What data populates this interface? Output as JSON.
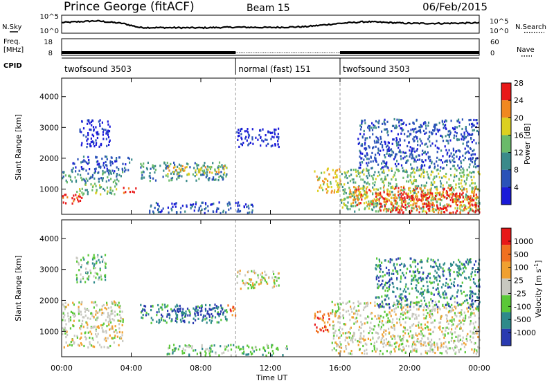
{
  "header": {
    "station": "Prince George (fitACF)",
    "beam": "Beam 15",
    "date": "06/Feb/2015"
  },
  "left_labels": {
    "nsky": "N.Sky",
    "freq_line1": "Freq.",
    "freq_line2": "[MHz]",
    "cpid": "CPID"
  },
  "right_labels": {
    "nsearch": "N.Search",
    "nave": "Nave"
  },
  "noise_axis": {
    "top": "10^5",
    "bottom": "10^0"
  },
  "freq_axis": {
    "left_ticks": [
      "18",
      "8"
    ],
    "right_ticks": [
      "60",
      "0"
    ]
  },
  "cpid_segments": [
    {
      "label": "twofsound 3503",
      "start_hour": 0,
      "end_hour": 10
    },
    {
      "label": "normal (fast) 151",
      "start_hour": 10,
      "end_hour": 16
    },
    {
      "label": "twofsound 3503",
      "start_hour": 16,
      "end_hour": 24
    }
  ],
  "x_axis": {
    "label": "Time UT",
    "ticks": [
      "00:00",
      "04:00",
      "08:00",
      "12:00",
      "16:00",
      "20:00",
      "00:00"
    ],
    "range_hours": [
      0,
      24
    ]
  },
  "power_panel": {
    "ylabel": "Slant Range [km]",
    "yticks": [
      "1000",
      "2000",
      "3000",
      "4000"
    ],
    "colorbar_label": "Power [dB]",
    "colorbar_ticks": [
      "4",
      "8",
      "12",
      "16",
      "20",
      "24",
      "28"
    ],
    "colors": [
      "#1a1ad8",
      "#2a52b8",
      "#3a8a8a",
      "#6aba6a",
      "#dcd020",
      "#f08820",
      "#e81818"
    ]
  },
  "velocity_panel": {
    "ylabel": "Slant Range [km]",
    "yticks": [
      "1000",
      "2000",
      "3000",
      "4000"
    ],
    "colorbar_label": "Velocity [m s",
    "colorbar_label_sup": "-1",
    "colorbar_label_end": "]",
    "colorbar_ticks": [
      "1000",
      "500",
      "100",
      "25",
      "-25",
      "-100",
      "-500",
      "-1000"
    ],
    "colors": [
      "#2a3ab0",
      "#2e8a8a",
      "#5ac838",
      "#c8c8c0",
      "#f0a030",
      "#f07020",
      "#e81818"
    ]
  },
  "chart_data": {
    "type": "heatmap",
    "title": "Prince George (fitACF)",
    "subtitle": "Beam 15",
    "xlabel": "Time UT",
    "ylabel": "Slant Range [km]",
    "xlim_hours": [
      0,
      24
    ],
    "ylim_km": [
      180,
      4600
    ],
    "power_db_range": [
      0,
      30
    ],
    "velocity_range": [
      -1000,
      1000
    ],
    "freq_mhz": [
      {
        "start_hour": 0,
        "end_hour": 10,
        "value": 10.5
      },
      {
        "start_hour": 10,
        "end_hour": 16,
        "value": 8.8
      },
      {
        "start_hour": 16,
        "end_hour": 24,
        "value": 10.5
      }
    ],
    "noise_profile": [
      {
        "hour": 0,
        "value": 0.6
      },
      {
        "hour": 2,
        "value": 0.7
      },
      {
        "hour": 3.5,
        "value": 0.55
      },
      {
        "hour": 4.5,
        "value": 0.3
      },
      {
        "hour": 8,
        "value": 0.28
      },
      {
        "hour": 10,
        "value": 0.32
      },
      {
        "hour": 12,
        "value": 0.3
      },
      {
        "hour": 14,
        "value": 0.35
      },
      {
        "hour": 16,
        "value": 0.55
      },
      {
        "hour": 17.5,
        "value": 0.65
      },
      {
        "hour": 20,
        "value": 0.55
      },
      {
        "hour": 22,
        "value": 0.55
      },
      {
        "hour": 24,
        "value": 0.58
      }
    ],
    "power_regions": [
      {
        "t0": 0,
        "t1": 1.3,
        "r0": 550,
        "r1": 850,
        "level": 6
      },
      {
        "t0": 0.8,
        "t1": 3.2,
        "r0": 850,
        "r1": 1200,
        "level": 3
      },
      {
        "t0": 0,
        "t1": 3.5,
        "r0": 1200,
        "r1": 1600,
        "level": 2
      },
      {
        "t0": 0.5,
        "t1": 4,
        "r0": 1600,
        "r1": 2100,
        "level": 1
      },
      {
        "t0": 1,
        "t1": 2.8,
        "r0": 2400,
        "r1": 3300,
        "level": 0
      },
      {
        "t0": 3.5,
        "t1": 4.3,
        "r0": 900,
        "r1": 1100,
        "level": 6
      },
      {
        "t0": 4.5,
        "t1": 9.5,
        "r0": 1300,
        "r1": 1900,
        "level": 2
      },
      {
        "t0": 6,
        "t1": 9.5,
        "r0": 1500,
        "r1": 1800,
        "level": 4
      },
      {
        "t0": 5,
        "t1": 11,
        "r0": 250,
        "r1": 600,
        "level": 1
      },
      {
        "t0": 10,
        "t1": 12.5,
        "r0": 2400,
        "r1": 3000,
        "level": 0
      },
      {
        "t0": 14.5,
        "t1": 16,
        "r0": 900,
        "r1": 1700,
        "level": 4
      },
      {
        "t0": 16,
        "t1": 24,
        "r0": 300,
        "r1": 1700,
        "level": 3
      },
      {
        "t0": 16.5,
        "t1": 24,
        "r0": 500,
        "r1": 1100,
        "level": 5
      },
      {
        "t0": 18,
        "t1": 24,
        "r0": 250,
        "r1": 900,
        "level": 6
      },
      {
        "t0": 17,
        "t1": 24,
        "r0": 1700,
        "r1": 3300,
        "level": 1
      }
    ],
    "velocity_regions": [
      {
        "t0": 0,
        "t1": 3.5,
        "r0": 500,
        "r1": 2000,
        "level": 3
      },
      {
        "t0": 0.8,
        "t1": 2.5,
        "r0": 2600,
        "r1": 3500,
        "level": 2
      },
      {
        "t0": 4.5,
        "t1": 9.5,
        "r0": 1300,
        "r1": 1900,
        "level": 1
      },
      {
        "t0": 6,
        "t1": 9.3,
        "r0": 1500,
        "r1": 1800,
        "level": 0
      },
      {
        "t0": 6,
        "t1": 13,
        "r0": 250,
        "r1": 600,
        "level": 2
      },
      {
        "t0": 9.5,
        "t1": 10,
        "r0": 1500,
        "r1": 1900,
        "level": 5
      },
      {
        "t0": 10,
        "t1": 12.5,
        "r0": 2400,
        "r1": 3000,
        "level": 3
      },
      {
        "t0": 14.5,
        "t1": 15.5,
        "r0": 1000,
        "r1": 1700,
        "level": 5
      },
      {
        "t0": 15.5,
        "t1": 24,
        "r0": 300,
        "r1": 2000,
        "level": 3
      },
      {
        "t0": 18,
        "t1": 24,
        "r0": 1800,
        "r1": 3400,
        "level": 1
      }
    ]
  }
}
